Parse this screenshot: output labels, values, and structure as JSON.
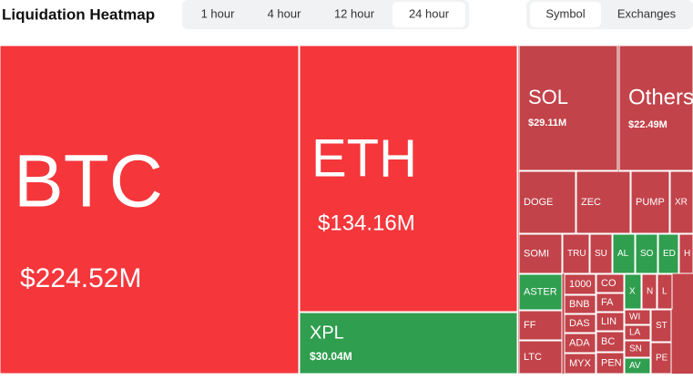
{
  "header": {
    "title": "Liquidation Heatmap",
    "periods": [
      "1 hour",
      "4 hour",
      "12 hour",
      "24 hour"
    ],
    "selected_period": 3,
    "groupings": [
      "Symbol",
      "Exchanges"
    ],
    "selected_grouping": 0
  },
  "tiles": [
    {
      "label": "BTC",
      "value": "$224.52M",
      "color": "#f5363b"
    },
    {
      "label": "ETH",
      "value": "$134.16M",
      "color": "#f5363b"
    },
    {
      "label": "XPL",
      "value": "$30.04M",
      "color": "#2f9e4f"
    },
    {
      "label": "SOL",
      "value": "$29.11M",
      "color": "#c2434a"
    },
    {
      "label": "Others",
      "value": "$22.49M",
      "color": "#c2434a"
    },
    {
      "label": "DOGE",
      "color": "#c2434a"
    },
    {
      "label": "ZEC",
      "color": "#c2434a"
    },
    {
      "label": "PUMP",
      "color": "#c2434a"
    },
    {
      "label": "XR",
      "color": "#c2434a"
    },
    {
      "label": "SOMI",
      "color": "#c2434a"
    },
    {
      "label": "TRU",
      "color": "#c2434a"
    },
    {
      "label": "SU",
      "color": "#c2434a"
    },
    {
      "label": "AL",
      "color": "#2f9e4f"
    },
    {
      "label": "SO",
      "color": "#2f9e4f"
    },
    {
      "label": "ED",
      "color": "#2f9e4f"
    },
    {
      "label": "H",
      "color": "#c2434a"
    },
    {
      "label": "ASTER",
      "color": "#2f9e4f"
    },
    {
      "label": "FF",
      "color": "#c2434a"
    },
    {
      "label": "LTC",
      "color": "#c2434a"
    },
    {
      "label": "1000",
      "color": "#c2434a"
    },
    {
      "label": "BNB",
      "color": "#c2434a"
    },
    {
      "label": "DAS",
      "color": "#c2434a"
    },
    {
      "label": "ADA",
      "color": "#c2434a"
    },
    {
      "label": "MYX",
      "color": "#c2434a"
    },
    {
      "label": "CO",
      "color": "#c2434a"
    },
    {
      "label": "FA",
      "color": "#c2434a"
    },
    {
      "label": "LIN",
      "color": "#c2434a"
    },
    {
      "label": "BC",
      "color": "#c2434a"
    },
    {
      "label": "PEN",
      "color": "#c2434a"
    },
    {
      "label": "X",
      "color": "#2f9e4f"
    },
    {
      "label": "N",
      "color": "#c2434a"
    },
    {
      "label": "L",
      "color": "#c2434a"
    },
    {
      "label": "WI",
      "color": "#c2434a"
    },
    {
      "label": "LA",
      "color": "#c2434a"
    },
    {
      "label": "SN",
      "color": "#c2434a"
    },
    {
      "label": "AV",
      "color": "#2f9e4f"
    },
    {
      "label": "ST",
      "color": "#c2434a"
    },
    {
      "label": "PE",
      "color": "#c2434a"
    }
  ]
}
